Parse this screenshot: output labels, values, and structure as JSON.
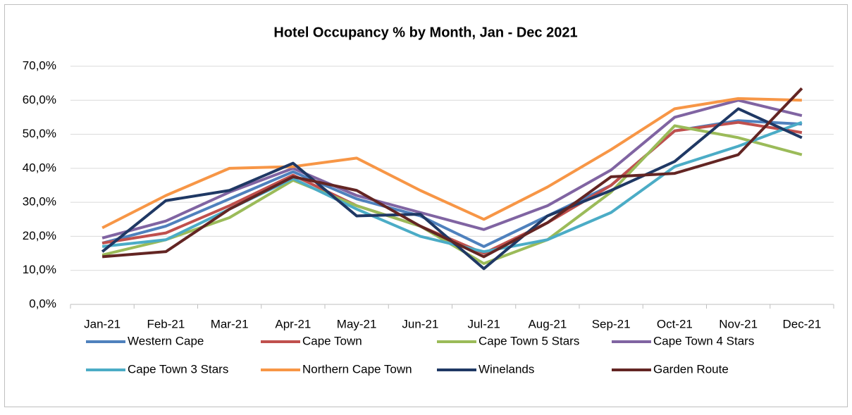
{
  "chart_data": {
    "type": "line",
    "title": "Hotel Occupancy % by Month, Jan - Dec 2021",
    "categories": [
      "Jan-21",
      "Feb-21",
      "Mar-21",
      "Apr-21",
      "May-21",
      "Jun-21",
      "Jul-21",
      "Aug-21",
      "Sep-21",
      "Oct-21",
      "Nov-21",
      "Dec-21"
    ],
    "series": [
      {
        "name": "Western Cape",
        "color": "#4f81bd",
        "values": [
          18,
          23,
          31,
          39,
          31,
          26,
          17,
          26,
          35,
          51,
          54,
          53
        ]
      },
      {
        "name": "Cape Town",
        "color": "#c0504d",
        "values": [
          18,
          21,
          29,
          38,
          29,
          23,
          15,
          24,
          35,
          51,
          53.5,
          50.5
        ]
      },
      {
        "name": "Cape Town 5 Stars",
        "color": "#9bbb59",
        "values": [
          14.5,
          19,
          25.5,
          36.5,
          29,
          23,
          12,
          19,
          33,
          52.5,
          49,
          44
        ]
      },
      {
        "name": "Cape Town 4 Stars",
        "color": "#8064a2",
        "values": [
          19.5,
          24.5,
          33,
          40,
          32,
          27,
          22,
          29,
          39.5,
          55,
          60,
          55.5
        ]
      },
      {
        "name": "Cape Town 3 Stars",
        "color": "#4bacc6",
        "values": [
          17,
          19,
          28,
          37,
          28,
          20,
          15.5,
          19,
          27,
          40.5,
          46.5,
          53.5
        ]
      },
      {
        "name": "Northern Cape Town",
        "color": "#f79646",
        "values": [
          22.5,
          32,
          40,
          40.5,
          43,
          33.5,
          25,
          34.5,
          45.5,
          57.5,
          60.5,
          60
        ]
      },
      {
        "name": "Winelands",
        "color": "#1f3864",
        "values": [
          15.5,
          30.5,
          33.5,
          41.5,
          26,
          26.5,
          10.5,
          26,
          33.5,
          42,
          57.5,
          49
        ]
      },
      {
        "name": "Garden Route",
        "color": "#632523",
        "values": [
          14,
          15.5,
          28,
          37.5,
          33.5,
          23,
          14,
          24,
          37.5,
          38.5,
          44,
          63.5
        ]
      }
    ],
    "ylim": [
      0,
      70
    ],
    "yticks": [
      {
        "value": 0,
        "label": "0,0%"
      },
      {
        "value": 10,
        "label": "10,0%"
      },
      {
        "value": 20,
        "label": "20,0%"
      },
      {
        "value": 30,
        "label": "30,0%"
      },
      {
        "value": 40,
        "label": "40,0%"
      },
      {
        "value": 50,
        "label": "50,0%"
      },
      {
        "value": 60,
        "label": "60,0%"
      },
      {
        "value": 70,
        "label": "70,0%"
      }
    ],
    "grid": true
  }
}
